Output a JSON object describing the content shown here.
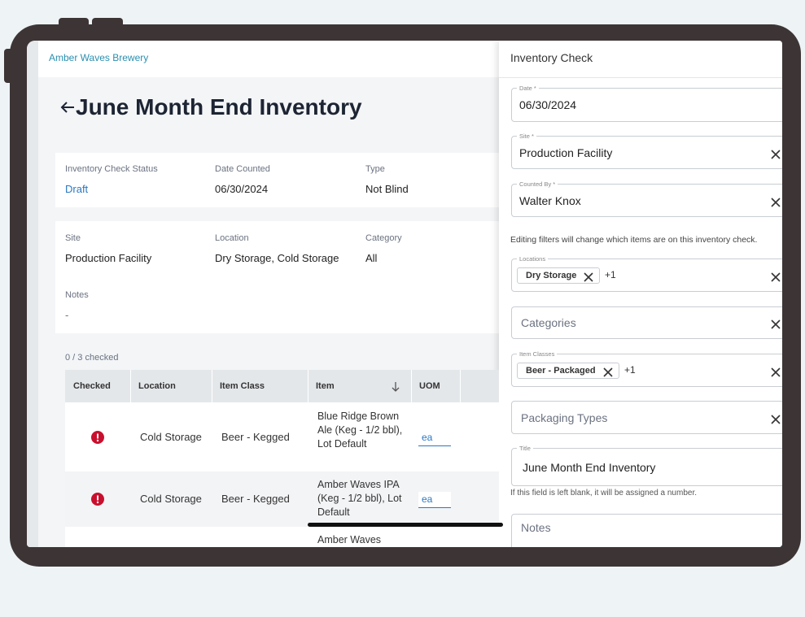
{
  "header": {
    "brand": "Amber Waves Brewery",
    "title": "June Month End Inventory"
  },
  "summary": [
    {
      "label": "Inventory Check Status",
      "value": "Draft"
    },
    {
      "label": "Date Counted",
      "value": "06/30/2024"
    },
    {
      "label": "Type",
      "value": "Not Blind"
    }
  ],
  "details": [
    {
      "label": "Site",
      "value": "Production Facility"
    },
    {
      "label": "Location",
      "value": "Dry Storage, Cold Storage"
    },
    {
      "label": "Category",
      "value": "All"
    }
  ],
  "notes": {
    "label": "Notes",
    "value": "-"
  },
  "table": {
    "count": "0 / 3 checked",
    "columns": [
      "Checked",
      "Location",
      "Item Class",
      "Item",
      "UOM"
    ],
    "rows": [
      [
        "Cold Storage",
        "Beer - Kegged",
        "Blue Ridge Brown Ale (Keg - 1/2 bbl), Lot Default",
        "ea"
      ],
      [
        "Cold Storage",
        "Beer - Kegged",
        "Amber Waves IPA (Keg - 1/2 bbl), Lot Default",
        "ea"
      ],
      [
        "",
        "",
        "Amber Waves",
        ""
      ]
    ]
  },
  "panel": {
    "title": "Inventory Check",
    "fields": [
      {
        "label": "Date *",
        "value": "06/30/2024"
      },
      {
        "label": "Site *",
        "value": "Production Facility"
      },
      {
        "label": "Counted By *",
        "value": "Walter Knox"
      },
      {
        "label": "Locations",
        "chip": "Dry Storage",
        "more": "+1"
      },
      {
        "placeholder": "Categories"
      },
      {
        "label": "Item Classes",
        "chip": "Beer - Packaged",
        "more": "+1"
      },
      {
        "placeholder": "Packaging Types"
      },
      {
        "label": "Title",
        "value": "June Month End Inventory"
      },
      {
        "placeholder": "Notes"
      }
    ],
    "filter_note": "Editing filters will change which items are on this inventory check.",
    "title_note": "If this field is left blank, it will be assigned a number."
  }
}
